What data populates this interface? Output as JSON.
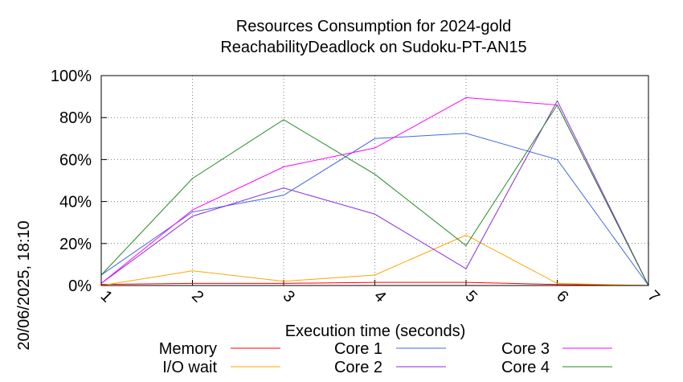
{
  "chart_data": {
    "type": "line",
    "title": "Resources Consumption for 2024-gold",
    "subtitle": "ReachabilityDeadlock on Sudoku-PT-AN15",
    "xlabel": "Execution time (seconds)",
    "ylabel": "",
    "x": [
      1,
      2,
      3,
      4,
      5,
      6,
      7
    ],
    "xlim": [
      1,
      7
    ],
    "ylim": [
      0,
      100
    ],
    "x_ticks": [
      "1",
      "2",
      "3",
      "4",
      "5",
      "6",
      "7"
    ],
    "y_ticks": [
      "0%",
      "20%",
      "40%",
      "60%",
      "80%",
      "100%"
    ],
    "grid": true,
    "legend": "bottom",
    "timestamp": "20/06/2025, 18:10",
    "series": [
      {
        "name": "Memory",
        "color": "#ff0000",
        "values": [
          0.5,
          1,
          1,
          1.5,
          1.5,
          0.5,
          0
        ]
      },
      {
        "name": "I/O wait",
        "color": "#ffa500",
        "values": [
          0,
          7,
          2,
          5,
          24,
          1,
          0
        ]
      },
      {
        "name": "Core 1",
        "color": "#4169e1",
        "values": [
          5,
          35,
          43,
          70,
          72.5,
          60,
          0
        ]
      },
      {
        "name": "Core 2",
        "color": "#8a2be2",
        "values": [
          1,
          33,
          46.5,
          34,
          8,
          88,
          0
        ]
      },
      {
        "name": "Core 3",
        "color": "#ff00ff",
        "values": [
          1,
          36,
          56.5,
          65.5,
          89.5,
          86,
          0
        ]
      },
      {
        "name": "Core 4",
        "color": "#228b22",
        "values": [
          5,
          51,
          79,
          53,
          19,
          86,
          0
        ]
      }
    ]
  }
}
